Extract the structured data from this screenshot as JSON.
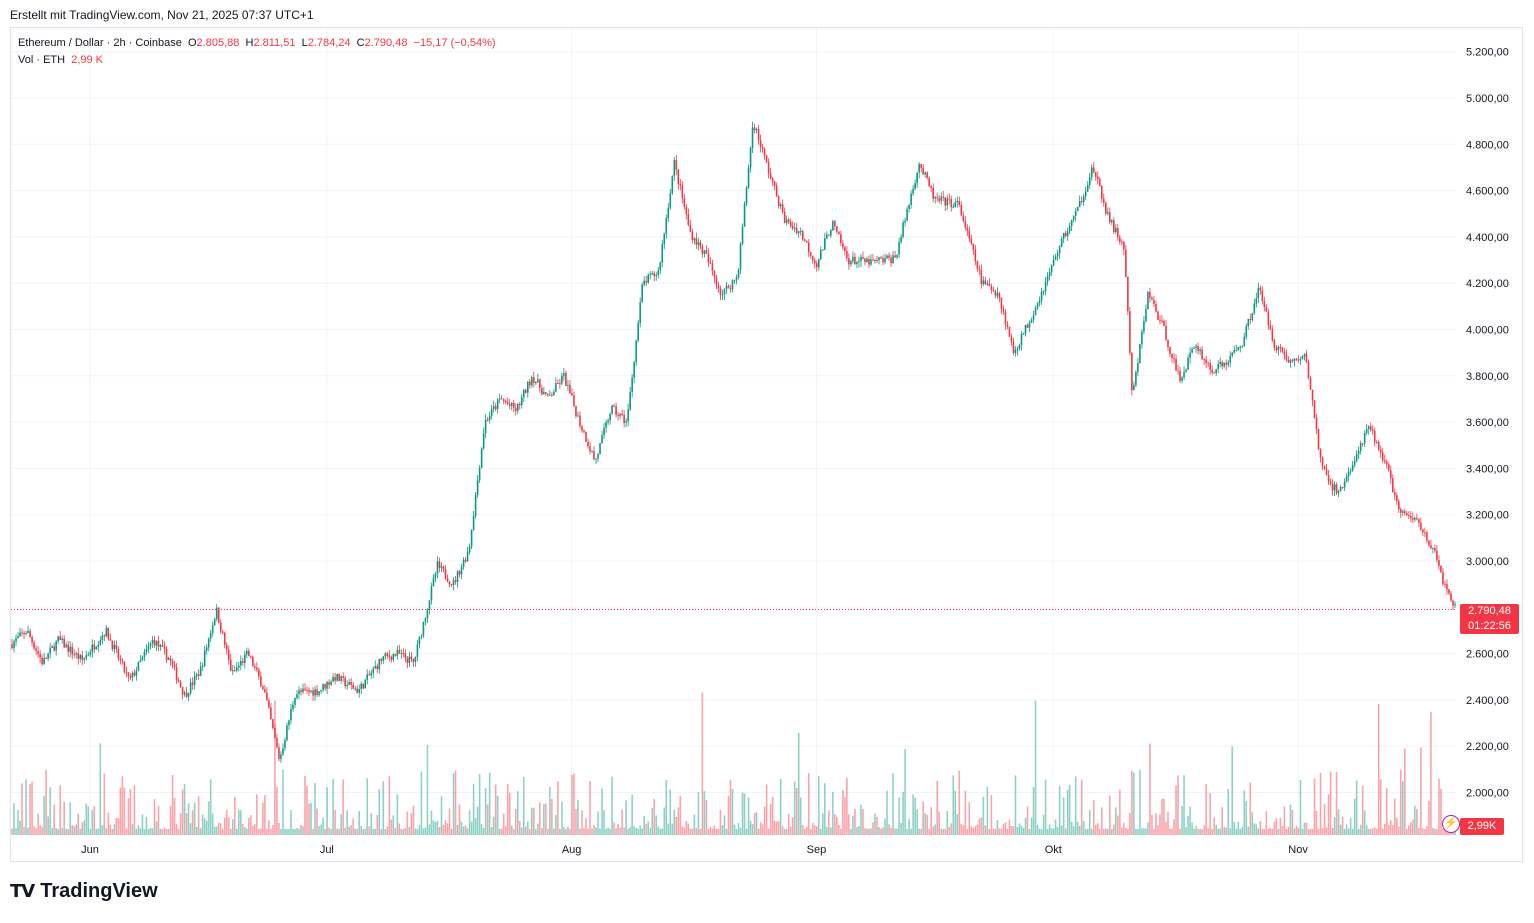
{
  "credit": "Erstellt mit TradingView.com, Nov 21, 2025 07:37 UTC+1",
  "legend": {
    "symbol": "Ethereum / Dollar · 2h · Coinbase",
    "open_label": "O",
    "open": "2.805,88",
    "high_label": "H",
    "high": "2.811,51",
    "low_label": "L",
    "low": "2.784,24",
    "close_label": "C",
    "close": "2.790,48",
    "change": "−15,17 (−0,54%)",
    "vol_label": "Vol · ETH",
    "vol_value": "2,99 K"
  },
  "price_tag": {
    "price": "2.790,48",
    "countdown": "01:22:56"
  },
  "vol_tag": "2,99K",
  "brand": "TradingView",
  "colors": {
    "up": "#089981",
    "down": "#f23645",
    "grid": "#f0f3fa",
    "text": "#131722"
  },
  "chart_data": {
    "type": "candlestick",
    "symbol": "ETH/USD",
    "interval": "2h",
    "ylim": [
      1800,
      5300
    ],
    "y_ticks": [
      "5.200,00",
      "5.000,00",
      "4.800,00",
      "4.600,00",
      "4.400,00",
      "4.200,00",
      "4.000,00",
      "3.800,00",
      "3.600,00",
      "3.400,00",
      "3.200,00",
      "3.000,00",
      "2.800,00",
      "2.600,00",
      "2.400,00",
      "2.200,00",
      "2.000,00"
    ],
    "y_tick_values": [
      5200,
      5000,
      4800,
      4600,
      4400,
      4200,
      4000,
      3800,
      3600,
      3400,
      3200,
      3000,
      2800,
      2600,
      2400,
      2200,
      2000
    ],
    "x_labels": [
      "Jun",
      "Jul",
      "Aug",
      "Sep",
      "Okt",
      "Nov"
    ],
    "x_label_dates": [
      "2025-06-01",
      "2025-07-01",
      "2025-08-01",
      "2025-09-01",
      "2025-10-01",
      "2025-11-01"
    ],
    "date_range": [
      "2025-05-22",
      "2025-11-21"
    ],
    "last_price": 2790.48,
    "price_path": [
      [
        "2025-05-22",
        2640
      ],
      [
        "2025-05-24",
        2700
      ],
      [
        "2025-05-26",
        2560
      ],
      [
        "2025-05-28",
        2660
      ],
      [
        "2025-05-31",
        2570
      ],
      [
        "2025-06-03",
        2700
      ],
      [
        "2025-06-06",
        2480
      ],
      [
        "2025-06-09",
        2660
      ],
      [
        "2025-06-11",
        2580
      ],
      [
        "2025-06-13",
        2420
      ],
      [
        "2025-06-15",
        2530
      ],
      [
        "2025-06-17",
        2790
      ],
      [
        "2025-06-19",
        2510
      ],
      [
        "2025-06-21",
        2600
      ],
      [
        "2025-06-23",
        2450
      ],
      [
        "2025-06-25",
        2140
      ],
      [
        "2025-06-27",
        2430
      ],
      [
        "2025-06-30",
        2440
      ],
      [
        "2025-07-02",
        2500
      ],
      [
        "2025-07-05",
        2440
      ],
      [
        "2025-07-08",
        2580
      ],
      [
        "2025-07-10",
        2600
      ],
      [
        "2025-07-12",
        2560
      ],
      [
        "2025-07-15",
        2980
      ],
      [
        "2025-07-17",
        2900
      ],
      [
        "2025-07-19",
        3050
      ],
      [
        "2025-07-21",
        3600
      ],
      [
        "2025-07-23",
        3700
      ],
      [
        "2025-07-25",
        3650
      ],
      [
        "2025-07-27",
        3800
      ],
      [
        "2025-07-29",
        3700
      ],
      [
        "2025-07-31",
        3800
      ],
      [
        "2025-08-02",
        3600
      ],
      [
        "2025-08-04",
        3430
      ],
      [
        "2025-08-06",
        3660
      ],
      [
        "2025-08-08",
        3600
      ],
      [
        "2025-08-10",
        4200
      ],
      [
        "2025-08-12",
        4250
      ],
      [
        "2025-08-14",
        4720
      ],
      [
        "2025-08-16",
        4420
      ],
      [
        "2025-08-18",
        4320
      ],
      [
        "2025-08-20",
        4150
      ],
      [
        "2025-08-22",
        4230
      ],
      [
        "2025-08-24",
        4900
      ],
      [
        "2025-08-26",
        4680
      ],
      [
        "2025-08-28",
        4470
      ],
      [
        "2025-08-30",
        4420
      ],
      [
        "2025-09-01",
        4280
      ],
      [
        "2025-09-03",
        4460
      ],
      [
        "2025-09-05",
        4300
      ],
      [
        "2025-09-08",
        4290
      ],
      [
        "2025-09-11",
        4310
      ],
      [
        "2025-09-14",
        4720
      ],
      [
        "2025-09-16",
        4560
      ],
      [
        "2025-09-19",
        4540
      ],
      [
        "2025-09-22",
        4200
      ],
      [
        "2025-09-24",
        4160
      ],
      [
        "2025-09-26",
        3900
      ],
      [
        "2025-09-28",
        4040
      ],
      [
        "2025-09-30",
        4200
      ],
      [
        "2025-10-02",
        4380
      ],
      [
        "2025-10-04",
        4510
      ],
      [
        "2025-10-06",
        4700
      ],
      [
        "2025-10-08",
        4480
      ],
      [
        "2025-10-10",
        4350
      ],
      [
        "2025-10-11",
        3700
      ],
      [
        "2025-10-13",
        4160
      ],
      [
        "2025-10-15",
        4000
      ],
      [
        "2025-10-17",
        3780
      ],
      [
        "2025-10-19",
        3940
      ],
      [
        "2025-10-21",
        3820
      ],
      [
        "2025-10-23",
        3860
      ],
      [
        "2025-10-25",
        3950
      ],
      [
        "2025-10-27",
        4180
      ],
      [
        "2025-10-29",
        3940
      ],
      [
        "2025-10-31",
        3860
      ],
      [
        "2025-11-02",
        3880
      ],
      [
        "2025-11-04",
        3400
      ],
      [
        "2025-11-06",
        3290
      ],
      [
        "2025-11-08",
        3420
      ],
      [
        "2025-11-10",
        3580
      ],
      [
        "2025-11-12",
        3430
      ],
      [
        "2025-11-14",
        3200
      ],
      [
        "2025-11-16",
        3180
      ],
      [
        "2025-11-18",
        3060
      ],
      [
        "2025-11-20",
        2850
      ],
      [
        "2025-11-21",
        2790.48
      ]
    ]
  }
}
